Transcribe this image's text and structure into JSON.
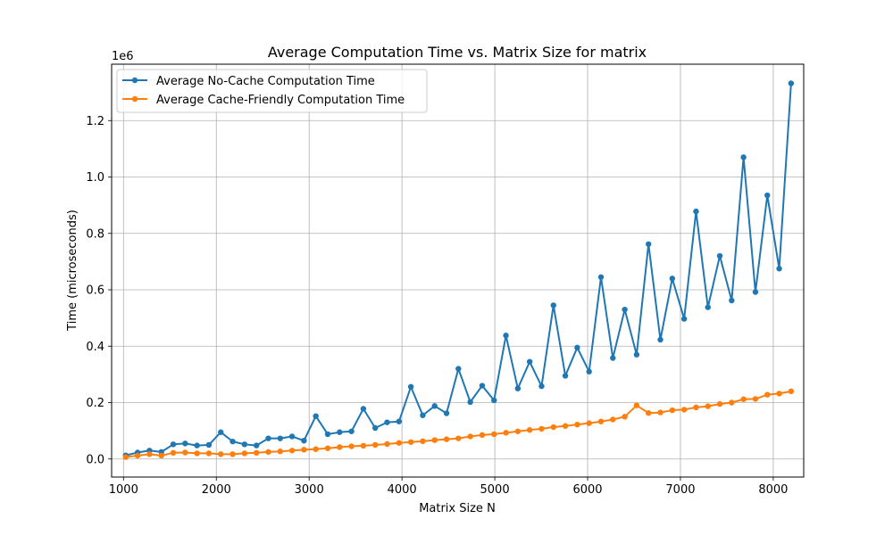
{
  "chart_data": {
    "type": "line",
    "title": "Average Computation Time vs. Matrix Size for matrix",
    "xlabel": "Matrix Size N",
    "ylabel": "Time (microseconds)",
    "y_multiplier": "1e6",
    "xlim": [
      872,
      8328
    ],
    "ylim": [
      -64000,
      1400000
    ],
    "xticks": [
      1000,
      2000,
      3000,
      4000,
      5000,
      6000,
      7000,
      8000
    ],
    "xtick_labels": [
      "1000",
      "2000",
      "3000",
      "4000",
      "5000",
      "6000",
      "7000",
      "8000"
    ],
    "yticks": [
      0,
      200000,
      400000,
      600000,
      800000,
      1000000,
      1200000
    ],
    "ytick_labels": [
      "0.0",
      "0.2",
      "0.4",
      "0.6",
      "0.8",
      "1.0",
      "1.2"
    ],
    "grid": true,
    "legend_position": "top-left",
    "x": [
      1024,
      1152,
      1280,
      1408,
      1536,
      1664,
      1792,
      1920,
      2048,
      2176,
      2304,
      2432,
      2560,
      2688,
      2816,
      2944,
      3072,
      3200,
      3328,
      3456,
      3584,
      3712,
      3840,
      3968,
      4096,
      4224,
      4352,
      4480,
      4608,
      4736,
      4864,
      4992,
      5120,
      5248,
      5376,
      5504,
      5632,
      5760,
      5888,
      6016,
      6144,
      6272,
      6400,
      6528,
      6656,
      6784,
      6912,
      7040,
      7168,
      7296,
      7424,
      7552,
      7680,
      7808,
      7936,
      8064,
      8192
    ],
    "series": [
      {
        "name": "Average No-Cache Computation Time",
        "color": "#1f77b4",
        "values": [
          13000,
          23000,
          30000,
          25000,
          52000,
          55000,
          48000,
          50000,
          95000,
          62000,
          52000,
          48000,
          73000,
          73000,
          80000,
          65000,
          152000,
          88000,
          95000,
          98000,
          178000,
          110000,
          130000,
          133000,
          256000,
          155000,
          188000,
          162000,
          320000,
          202000,
          260000,
          208000,
          438000,
          250000,
          345000,
          258000,
          545000,
          295000,
          395000,
          310000,
          645000,
          358000,
          530000,
          370000,
          762000,
          423000,
          640000,
          497000,
          878000,
          538000,
          720000,
          562000,
          1070000,
          592000,
          935000,
          675000,
          1332000
        ]
      },
      {
        "name": "Average Cache-Friendly Computation Time",
        "color": "#ff7f0e",
        "values": [
          7000,
          12000,
          17000,
          12000,
          22000,
          23000,
          20000,
          20000,
          17000,
          17000,
          20000,
          22000,
          25000,
          27000,
          30000,
          33000,
          35000,
          38000,
          42000,
          45000,
          47000,
          50000,
          53000,
          57000,
          60000,
          63000,
          67000,
          70000,
          73000,
          80000,
          85000,
          88000,
          93000,
          98000,
          103000,
          107000,
          113000,
          117000,
          122000,
          127000,
          133000,
          140000,
          150000,
          190000,
          163000,
          165000,
          173000,
          175000,
          183000,
          187000,
          195000,
          200000,
          212000,
          213000,
          228000,
          232000,
          240000
        ]
      }
    ]
  }
}
